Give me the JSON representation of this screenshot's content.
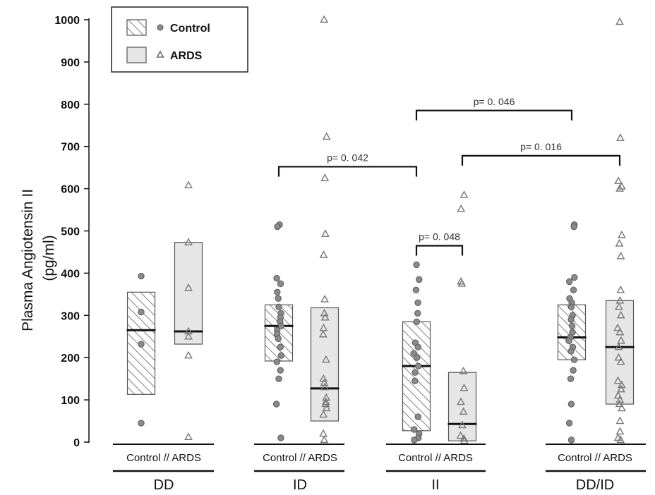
{
  "chart_data": {
    "type": "scatter",
    "ylabel": "Plasma Angiotensin II (pg/ml)",
    "ylabel_lines": [
      "Plasma Angiotensin II",
      "(pg/ml)"
    ],
    "ylim": [
      0,
      1000
    ],
    "yticks": [
      "0",
      "100",
      "200",
      "300",
      "400",
      "500",
      "600",
      "700",
      "800",
      "900",
      "1000"
    ],
    "legend": [
      {
        "name": "Control",
        "marker": "circle",
        "fill": "hatched"
      },
      {
        "name": "ARDS",
        "marker": "triangle",
        "fill": "#e6e6e6"
      }
    ],
    "legend_position": "top-left",
    "colors": {
      "box_fill_ards": "#e6e6e6",
      "marker": "#777777",
      "hatch": "#888888"
    },
    "groups": [
      {
        "name": "DD",
        "sub_label": "Control // ARDS",
        "control": {
          "q1": 113,
          "median": 265,
          "q3": 355,
          "points": [
            393,
            308,
            232,
            45
          ]
        },
        "ards": {
          "q1": 232,
          "median": 262,
          "q3": 473,
          "points": [
            608,
            473,
            365,
            262,
            250,
            205,
            12
          ]
        }
      },
      {
        "name": "ID",
        "sub_label": "Control // ARDS",
        "control": {
          "q1": 192,
          "median": 275,
          "q3": 325,
          "points": [
            515,
            510,
            388,
            375,
            355,
            340,
            320,
            305,
            295,
            285,
            275,
            265,
            255,
            245,
            225,
            205,
            190,
            170,
            150,
            90,
            10
          ]
        },
        "ards": {
          "q1": 50,
          "median": 127,
          "q3": 318,
          "points": [
            1000,
            723,
            625,
            493,
            443,
            338,
            305,
            295,
            270,
            255,
            195,
            150,
            140,
            130,
            105,
            95,
            90,
            80,
            65,
            20,
            5
          ]
        }
      },
      {
        "name": "II",
        "sub_label": "Control // ARDS",
        "control": {
          "q1": 27,
          "median": 180,
          "q3": 285,
          "points": [
            420,
            385,
            360,
            330,
            305,
            285,
            235,
            225,
            210,
            200,
            180,
            165,
            145,
            60,
            30,
            20,
            10,
            5
          ]
        },
        "ards": {
          "q1": 3,
          "median": 43,
          "q3": 165,
          "points": [
            585,
            552,
            380,
            375,
            168,
            128,
            95,
            72,
            40,
            15,
            8,
            3
          ]
        }
      },
      {
        "name": "DD/ID",
        "sub_label": "Control // ARDS",
        "control": {
          "q1": 195,
          "median": 248,
          "q3": 325,
          "points": [
            515,
            510,
            390,
            380,
            360,
            340,
            330,
            320,
            300,
            290,
            275,
            260,
            248,
            240,
            225,
            215,
            195,
            170,
            150,
            90,
            45,
            5
          ]
        },
        "ards": {
          "q1": 90,
          "median": 225,
          "q3": 335,
          "points": [
            995,
            720,
            618,
            605,
            600,
            490,
            470,
            440,
            360,
            335,
            320,
            300,
            270,
            260,
            240,
            225,
            200,
            190,
            145,
            135,
            125,
            110,
            100,
            90,
            80,
            50,
            25,
            10,
            5
          ]
        }
      }
    ],
    "annotations": [
      {
        "label": "p= 0. 046",
        "from": "II Control",
        "to": "DD/ID Control",
        "level": 785
      },
      {
        "label": "p= 0. 016",
        "from": "II ARDS",
        "to": "DD/ID ARDS",
        "level": 678
      },
      {
        "label": "p= 0. 042",
        "from": "ID Control",
        "to": "II Control",
        "level": 652
      },
      {
        "label": "p= 0. 048",
        "from": "II Control",
        "to": "II ARDS",
        "level": 465
      }
    ]
  }
}
